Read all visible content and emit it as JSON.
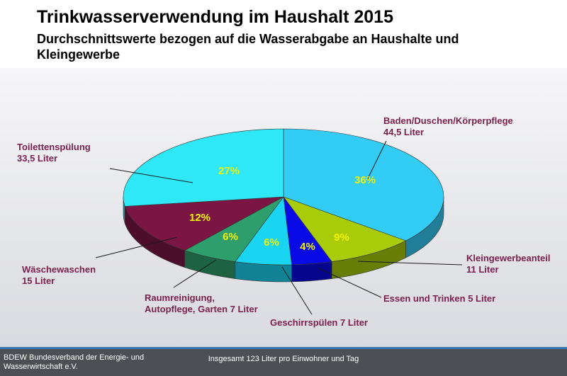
{
  "header": {
    "title": "Trinkwasserverwendung im Haushalt 2015",
    "subtitle": "Durchschnittswerte bezogen auf die Wasserabgabe an Haushalte und Kleingewerbe"
  },
  "footer": {
    "organization": "BDEW Bundesverband der Energie- und Wasserwirtschaft e.V.",
    "total_note": "Insgesamt 123 Liter pro Einwohner und Tag"
  },
  "chart_data": {
    "type": "pie",
    "title": "Trinkwasserverwendung im Haushalt 2015",
    "unit": "Liter",
    "slices": [
      {
        "name": "Baden/Duschen/Körperpflege",
        "liters": 44.5,
        "percent": 36,
        "label_lines": [
          "Baden/Duschen/Körperpflege",
          "44,5 Liter"
        ],
        "pct_label": "36%",
        "color": "#33ccf5"
      },
      {
        "name": "Kleingewerbeanteil",
        "liters": 11,
        "percent": 9,
        "label_lines": [
          "Kleingewerbeanteil",
          "11 Liter"
        ],
        "pct_label": "9%",
        "color": "#a8cc0a"
      },
      {
        "name": "Essen und Trinken",
        "liters": 5,
        "percent": 4,
        "label_lines": [
          "Essen und Trinken 5 Liter"
        ],
        "pct_label": "4%",
        "color": "#0a0ae6"
      },
      {
        "name": "Geschirrspülen",
        "liters": 7,
        "percent": 6,
        "label_lines": [
          "Geschirrspülen 7 Liter"
        ],
        "pct_label": "6%",
        "color": "#1ad5f2"
      },
      {
        "name": "Raumreinigung, Autopflege, Garten",
        "liters": 7,
        "percent": 6,
        "label_lines": [
          "Raumreinigung,",
          "Autopflege, Garten 7 Liter"
        ],
        "pct_label": "6%",
        "color": "#2e9e6c"
      },
      {
        "name": "Wäschewaschen",
        "liters": 15,
        "percent": 12,
        "label_lines": [
          "Wäschewaschen",
          "15 Liter"
        ],
        "pct_label": "12%",
        "color": "#7b1644"
      },
      {
        "name": "Toilettenspülung",
        "liters": 33.5,
        "percent": 27,
        "label_lines": [
          "Toilettenspülung",
          "33,5 Liter"
        ],
        "pct_label": "27%",
        "color": "#2ee8f7"
      }
    ],
    "colors": {
      "category_label": "#7a1f4d",
      "percent_label": "#f2f200"
    }
  }
}
